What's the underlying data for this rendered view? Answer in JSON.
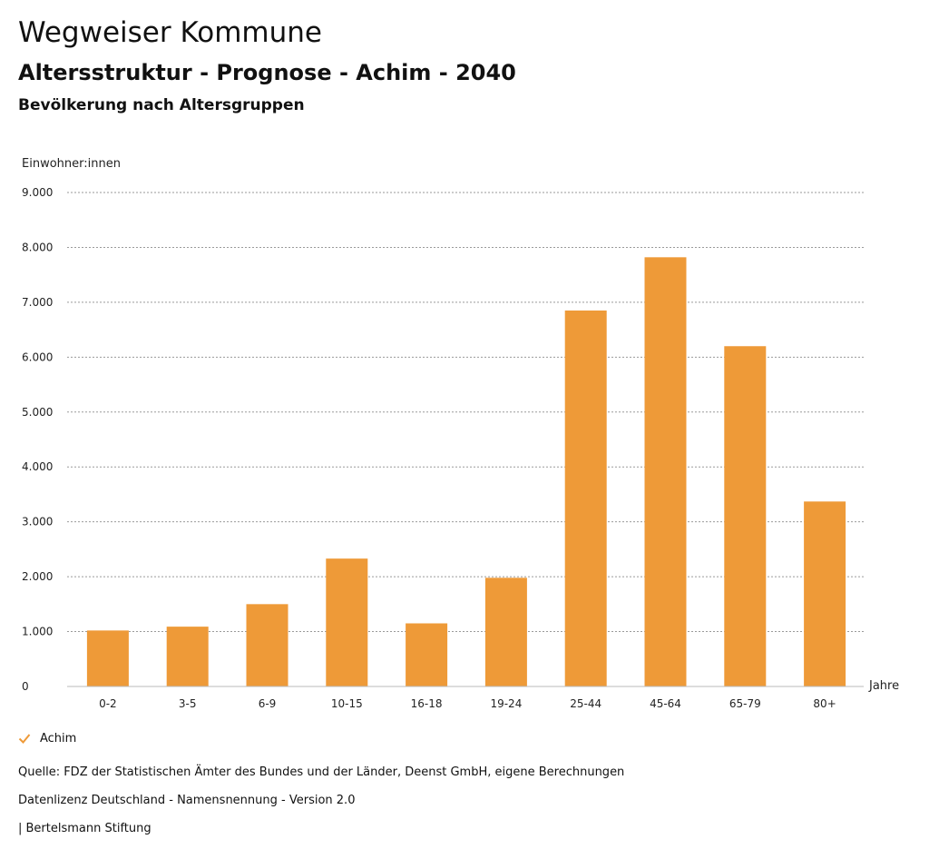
{
  "header": {
    "title": "Wegweiser Kommune",
    "subtitle": "Altersstruktur - Prognose - Achim - 2040",
    "heading": "Bevölkerung nach Altersgruppen"
  },
  "chart_data": {
    "type": "bar",
    "ylabel": "Einwohner:innen",
    "xlabel": "Jahre",
    "ylim": [
      0,
      9000
    ],
    "yticks": [
      0,
      1000,
      2000,
      3000,
      4000,
      5000,
      6000,
      7000,
      8000,
      9000
    ],
    "ytick_labels": [
      "0",
      "1.000",
      "2.000",
      "3.000",
      "4.000",
      "5.000",
      "6.000",
      "7.000",
      "8.000",
      "9.000"
    ],
    "categories": [
      "0-2",
      "3-5",
      "6-9",
      "10-15",
      "16-18",
      "19-24",
      "25-44",
      "45-64",
      "65-79",
      "80+"
    ],
    "series": [
      {
        "name": "Achim",
        "color": "#ee9a38",
        "values": [
          1020,
          1090,
          1500,
          2330,
          1150,
          1980,
          6850,
          7820,
          6200,
          3370
        ]
      }
    ],
    "grid": true,
    "legend_position": "bottom-left"
  },
  "legend": {
    "items": [
      {
        "label": "Achim",
        "color": "#ee9a38",
        "icon": "check-icon"
      }
    ]
  },
  "footer": {
    "source": "Quelle: FDZ der Statistischen Ämter des Bundes und der Länder, Deenst GmbH, eigene Berechnungen",
    "license": "Datenlizenz Deutschland - Namensnennung - Version 2.0",
    "credit": "| Bertelsmann Stiftung"
  }
}
